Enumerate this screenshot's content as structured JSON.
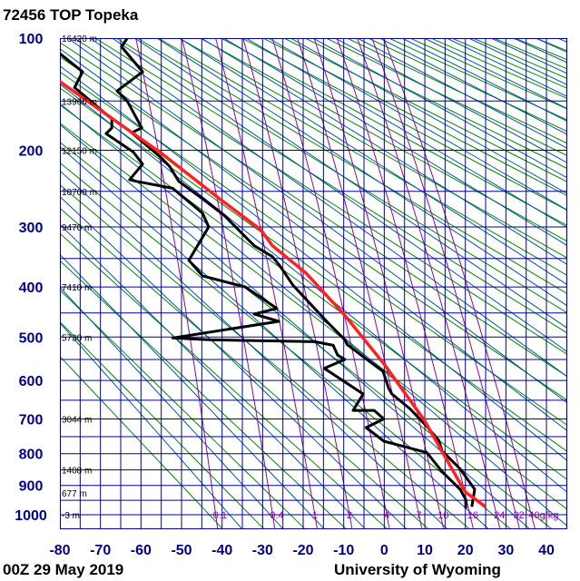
{
  "chart_data": {
    "type": "line",
    "title": "72456 TOP Topeka",
    "footer_left": "00Z 29 May 2019",
    "footer_right": "University of Wyoming",
    "x_axis": {
      "quantity": "temperature",
      "unit": "C",
      "range": [
        -80,
        45
      ],
      "ticks": [
        -80,
        -70,
        -60,
        -50,
        -40,
        -30,
        -20,
        -10,
        0,
        10,
        20,
        30,
        40
      ]
    },
    "y_axis": {
      "quantity": "pressure",
      "unit": "hPa",
      "range": [
        100,
        1050
      ],
      "ticks": [
        100,
        200,
        300,
        400,
        500,
        600,
        700,
        800,
        900,
        1000
      ],
      "inverted": true
    },
    "height_labels": [
      {
        "p": 100,
        "label": "16420 m"
      },
      {
        "p": 150,
        "label": "13960 m"
      },
      {
        "p": 200,
        "label": "12150 m"
      },
      {
        "p": 250,
        "label": "10700 m"
      },
      {
        "p": 300,
        "label": "9470 m"
      },
      {
        "p": 400,
        "label": "7410 m"
      },
      {
        "p": 500,
        "label": "5730 m"
      },
      {
        "p": 700,
        "label": "3044 m"
      },
      {
        "p": 850,
        "label": "1408 m"
      },
      {
        "p": 925,
        "label": "677 m"
      },
      {
        "p": 1000,
        "label": "-3 m"
      }
    ],
    "mixing_ratio_labels": [
      {
        "w": 0.1,
        "label": "0.1"
      },
      {
        "w": 0.4,
        "label": "0.4"
      },
      {
        "w": 1,
        "label": "1"
      },
      {
        "w": 2,
        "label": "2"
      },
      {
        "w": 4,
        "label": "4"
      },
      {
        "w": 7,
        "label": "7"
      },
      {
        "w": 10,
        "label": "10"
      },
      {
        "w": 16,
        "label": "16"
      },
      {
        "w": 24,
        "label": "24"
      },
      {
        "w": 32,
        "label": "32"
      },
      {
        "w": 40,
        "label": "40g/kg"
      }
    ],
    "grid": true,
    "colors": {
      "isobar": "#000099",
      "isotherm": "#000099",
      "dry_adiabat": "#008800",
      "moist_adiabat": "#0055aa",
      "mixing_ratio": "#990099"
    },
    "series": [
      {
        "color": "#000000",
        "points": [
          [
            100,
            -63.4
          ],
          [
            106,
            -64.8
          ],
          [
            125,
            -59.6
          ],
          [
            141,
            -65.9
          ],
          [
            150,
            -63.4
          ],
          [
            176,
            -59.8
          ],
          [
            181,
            -62.3
          ],
          [
            208,
            -55.1
          ],
          [
            219,
            -52.9
          ],
          [
            237,
            -50.7
          ],
          [
            260,
            -44.8
          ],
          [
            283,
            -39.5
          ],
          [
            329,
            -32.1
          ],
          [
            347,
            -27.6
          ],
          [
            362,
            -25.8
          ],
          [
            397,
            -22.5
          ],
          [
            467,
            -14.2
          ],
          [
            506,
            -9.7
          ],
          [
            516,
            -9.2
          ],
          [
            554,
            -3.7
          ],
          [
            578,
            -0.3
          ],
          [
            620,
            1.1
          ],
          [
            634,
            1.9
          ],
          [
            673,
            6.4
          ],
          [
            721,
            10.5
          ],
          [
            760,
            13.4
          ],
          [
            792,
            14.3
          ],
          [
            847,
            18.7
          ],
          [
            913,
            22.3
          ],
          [
            972,
            21.6
          ]
        ]
      },
      {
        "color": "#000000",
        "points": [
          [
            111,
            -80
          ],
          [
            125,
            -74.4
          ],
          [
            138,
            -76.4
          ],
          [
            167,
            -67.2
          ],
          [
            176,
            -67.2
          ],
          [
            182,
            -68.6
          ],
          [
            202,
            -61.9
          ],
          [
            216,
            -59.6
          ],
          [
            235,
            -62.8
          ],
          [
            237,
            -61.2
          ],
          [
            246,
            -52.2
          ],
          [
            280,
            -44.8
          ],
          [
            300,
            -43.3
          ],
          [
            353,
            -48.2
          ],
          [
            380,
            -44.8
          ],
          [
            400,
            -34.3
          ],
          [
            441,
            -26.5
          ],
          [
            452,
            -32.1
          ],
          [
            467,
            -26
          ],
          [
            502,
            -52.2
          ],
          [
            506,
            -43.3
          ],
          [
            510,
            -17.1
          ],
          [
            518,
            -12.6
          ],
          [
            540,
            -11.5
          ],
          [
            550,
            -9.7
          ],
          [
            571,
            -14.8
          ],
          [
            634,
            -5.2
          ],
          [
            677,
            -7.7
          ],
          [
            677,
            -2.5
          ],
          [
            700,
            -0.1
          ],
          [
            724,
            -4.5
          ],
          [
            763,
            -0.1
          ],
          [
            797,
            10.5
          ],
          [
            856,
            14.3
          ],
          [
            913,
            18.7
          ],
          [
            947,
            20.1
          ],
          [
            978,
            20.1
          ]
        ]
      },
      {
        "color": "#ff2020",
        "points": [
          [
            133,
            -80
          ],
          [
            203,
            -55.1
          ],
          [
            261,
            -40.4
          ],
          [
            304,
            -30.5
          ],
          [
            329,
            -27.6
          ],
          [
            375,
            -19.3
          ],
          [
            455,
            -9.7
          ],
          [
            560,
            -0.1
          ],
          [
            702,
            9.8
          ],
          [
            893,
            18.7
          ],
          [
            923,
            20.1
          ],
          [
            972,
            25
          ]
        ]
      }
    ]
  }
}
